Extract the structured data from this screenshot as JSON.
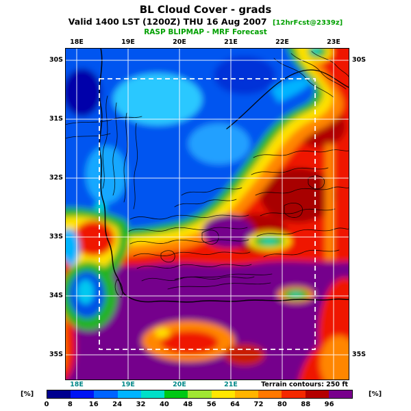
{
  "header": {
    "title": "BL Cloud Cover - grads",
    "subtitle_main": "Valid 1400 LST (1200Z) THU 16 Aug 2007",
    "subtitle_suffix": "[12hrFcst@2339z]",
    "model_line": "RASP BLIPMAP - MRF Forecast"
  },
  "map": {
    "top_ticks": [
      "18E",
      "19E",
      "20E",
      "21E",
      "22E",
      "23E"
    ],
    "bottom_ticks": [
      "18E",
      "19E",
      "20E",
      "21E"
    ],
    "left_ticks": [
      "30S",
      "31S",
      "32S",
      "33S",
      "34S",
      "35S"
    ],
    "right_ticks": [
      {
        "label": "30S",
        "row": 0
      },
      {
        "label": "35S",
        "row": 5
      }
    ],
    "terrain_note": "Terrain contours: 250 ft"
  },
  "colorbar": {
    "unit_left": "[%]",
    "unit_right": "[%]",
    "levels": [
      "0",
      "8",
      "16",
      "24",
      "32",
      "40",
      "48",
      "56",
      "64",
      "72",
      "80",
      "88",
      "96"
    ],
    "colors": [
      "#00008f",
      "#0014f5",
      "#0064ff",
      "#00b4ff",
      "#00e0c8",
      "#00c814",
      "#a0e632",
      "#ffe600",
      "#ffb400",
      "#ff7800",
      "#f52800",
      "#b40000",
      "#78008c"
    ]
  },
  "chart_data": {
    "type": "heatmap",
    "title": "BL Cloud Cover - grads",
    "subtitle": "Valid 1400 LST (1200Z) THU 16 Aug 2007 [12hrFcst@2339z]",
    "source_line": "RASP BLIPMAP - MRF Forecast",
    "variable": "Boundary layer cloud cover",
    "units": "percent",
    "x_axis": {
      "label": "longitude deg E",
      "ticks": [
        18,
        19,
        20,
        21,
        22,
        23
      ]
    },
    "y_axis": {
      "label": "latitude deg S",
      "ticks": [
        30,
        31,
        32,
        33,
        34,
        35
      ]
    },
    "colorbar": {
      "levels": [
        0,
        8,
        16,
        24,
        32,
        40,
        48,
        56,
        64,
        72,
        80,
        88,
        96
      ],
      "colors": [
        "#00008f",
        "#0014f5",
        "#0064ff",
        "#00b4ff",
        "#00e0c8",
        "#00c814",
        "#a0e632",
        "#ffe600",
        "#ffb400",
        "#ff7800",
        "#f52800",
        "#b40000",
        "#78008c"
      ]
    },
    "annotations": [
      "Terrain contours: 250 ft"
    ],
    "overlays": [
      "black terrain contour lines",
      "white lat-lon grid",
      "white dashed inner domain box",
      "bold coastline"
    ],
    "field_summary": [
      "0-30 percent (blue/cyan) over the northwest quadrant",
      "over 96 percent (purple) across most of the southern half",
      "70-96 percent (red/dark red) over the east, northeast corner, west coast strip and southeast corner",
      "narrow green-yellow-orange transition band arcs from the west coast up to the northeast corner",
      "small green-cyan minima embedded in the red/purple field near 21.5E 33.2S and 22E 34.2S",
      "blue-green minimum near 18.3E 34.2S off the southwest coast"
    ]
  }
}
